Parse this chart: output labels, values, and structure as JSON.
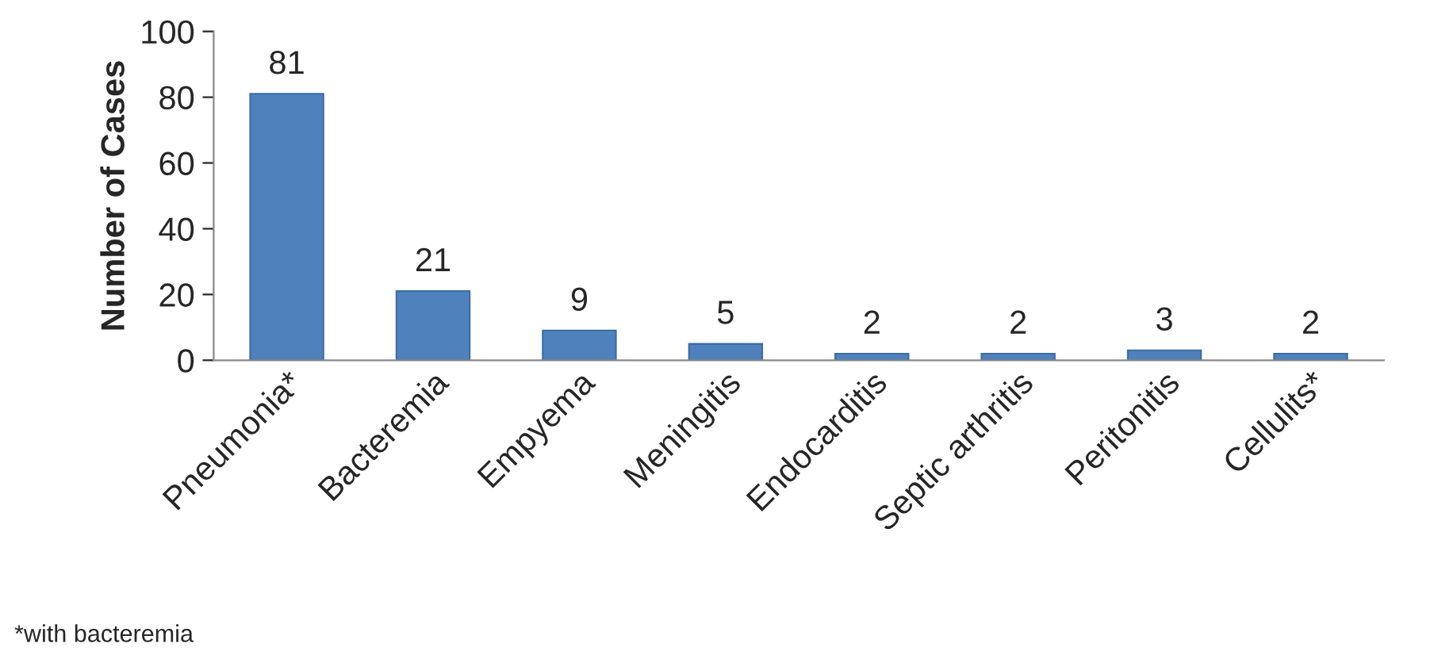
{
  "chart_data": {
    "type": "bar",
    "categories": [
      "Pneumonia*",
      "Bacteremia",
      "Empyema",
      "Meningitis",
      "Endocarditis",
      "Septic arthritis",
      "Peritonitis",
      "Cellulits*"
    ],
    "values": [
      81,
      21,
      9,
      5,
      2,
      2,
      3,
      2
    ],
    "color": "#4f81bd",
    "ylabel": "Number of Cases",
    "ylim": [
      0,
      100
    ],
    "yticks": [
      0,
      20,
      40,
      60,
      80,
      100
    ],
    "data_labels": true,
    "grid": false,
    "legend": false,
    "annotations": [
      "*with bacteremia"
    ]
  }
}
